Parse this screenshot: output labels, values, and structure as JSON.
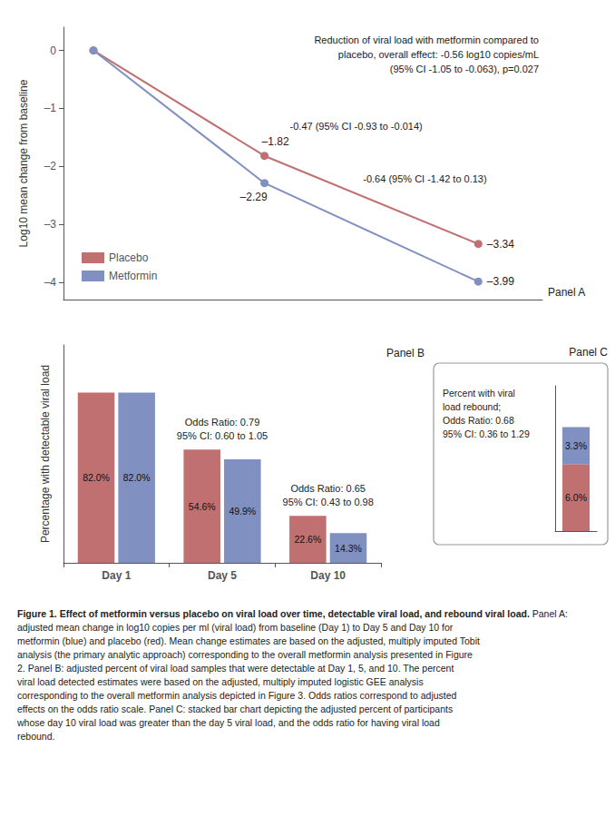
{
  "chart_data": [
    {
      "type": "line",
      "title": "Panel A",
      "ylabel": "Log10 mean change from baseline",
      "x": [
        1,
        5,
        10
      ],
      "xlim": [
        0.3,
        11.5
      ],
      "ylim": [
        -4.3,
        0.4
      ],
      "yticks": [
        0,
        {
          "value": -1,
          "label": "–1"
        },
        {
          "value": -2,
          "label": "–2"
        },
        {
          "value": -3,
          "label": "–3"
        },
        {
          "value": -4,
          "label": "–4"
        }
      ],
      "tick_labels": "y",
      "grid": false,
      "legend": "lower left",
      "marker": "circle",
      "data_labels": true,
      "series": [
        {
          "name": "Placebo",
          "color": "#c07070",
          "values": [
            0,
            -1.82,
            -3.34
          ],
          "value_labels": [
            null,
            "–1.82",
            "–3.34"
          ]
        },
        {
          "name": "Metformin",
          "color": "#8090c0",
          "values": [
            0,
            -2.29,
            -3.99
          ],
          "value_labels": [
            null,
            "–2.29",
            "–3.99"
          ]
        }
      ],
      "annotation": "Reduction of viral load with metformin compared to\nplacebo, overall effect: -0.56 log10 copies/mL\n(95% CI -1.05 to -0.063), p=0.027",
      "difference_labels": [
        null,
        "-0.47 (95% CI -0.93 to -0.014)",
        "-0.64 (95% CI -1.42 to 0.13)"
      ]
    },
    {
      "type": "bar",
      "title": "Panel B",
      "ylabel": "Percentage with detectable viral load",
      "categories": [
        "Day 1",
        "Day 5",
        "Day 10"
      ],
      "ylim": [
        0,
        105
      ],
      "tick_labels": "x",
      "grid": false,
      "data_labels": true,
      "series": [
        {
          "name": "Placebo",
          "color": "#c07070",
          "values": [
            82.0,
            54.6,
            22.6
          ],
          "value_labels": [
            "82.0%",
            "54.6%",
            "22.6%"
          ]
        },
        {
          "name": "Metformin",
          "color": "#8090c0",
          "values": [
            82.0,
            49.9,
            14.3
          ],
          "value_labels": [
            "82.0%",
            "49.9%",
            "14.3%"
          ]
        }
      ],
      "odds_ratio_labels": [
        null,
        "Odds Ratio: 0.79\n95% CI: 0.60 to 1.05",
        "Odds Ratio: 0.65\n95% CI: 0.43 to 0.98"
      ]
    },
    {
      "type": "bar",
      "title": "Panel C",
      "stacked": true,
      "categories": [
        null
      ],
      "ylim": [
        0,
        13
      ],
      "tick_labels": false,
      "grid": false,
      "data_labels": true,
      "annotation": "Percent with viral\nload rebound;\nOdds Ratio: 0.68\n95% CI: 0.36 to 1.29",
      "series": [
        {
          "name": "Placebo",
          "color": "#c07070",
          "values": [
            6.0
          ],
          "value_labels": [
            "6.0%"
          ]
        },
        {
          "name": "Metformin",
          "color": "#8090c0",
          "values": [
            3.3
          ],
          "value_labels": [
            "3.3%"
          ]
        }
      ]
    }
  ],
  "caption": {
    "bold": "Figure 1. Effect of metformin versus placebo on viral load over time, detectable viral load, and rebound viral load.",
    "text": " Panel A: adjusted mean change in log10 copies per ml (viral load) from baseline (Day 1) to Day 5 and Day 10 for metformin (blue) and placebo (red). Mean change estimates are based on the adjusted, multiply imputed Tobit analysis (the primary analytic approach) corresponding to the overall metformin analysis presented in Figure 2. Panel B: adjusted percent of viral load samples that were detectable at Day 1, 5, and 10. The percent viral load detected estimates were based on the adjusted, multiply imputed logistic GEE analysis corresponding to the overall metformin analysis depicted in Figure 3. Odds ratios correspond to adjusted effects on the odds ratio scale. Panel C: stacked bar chart depicting the adjusted percent of participants whose day 10 viral load was greater than the day 5 viral load, and the odds ratio for having viral load rebound."
  }
}
